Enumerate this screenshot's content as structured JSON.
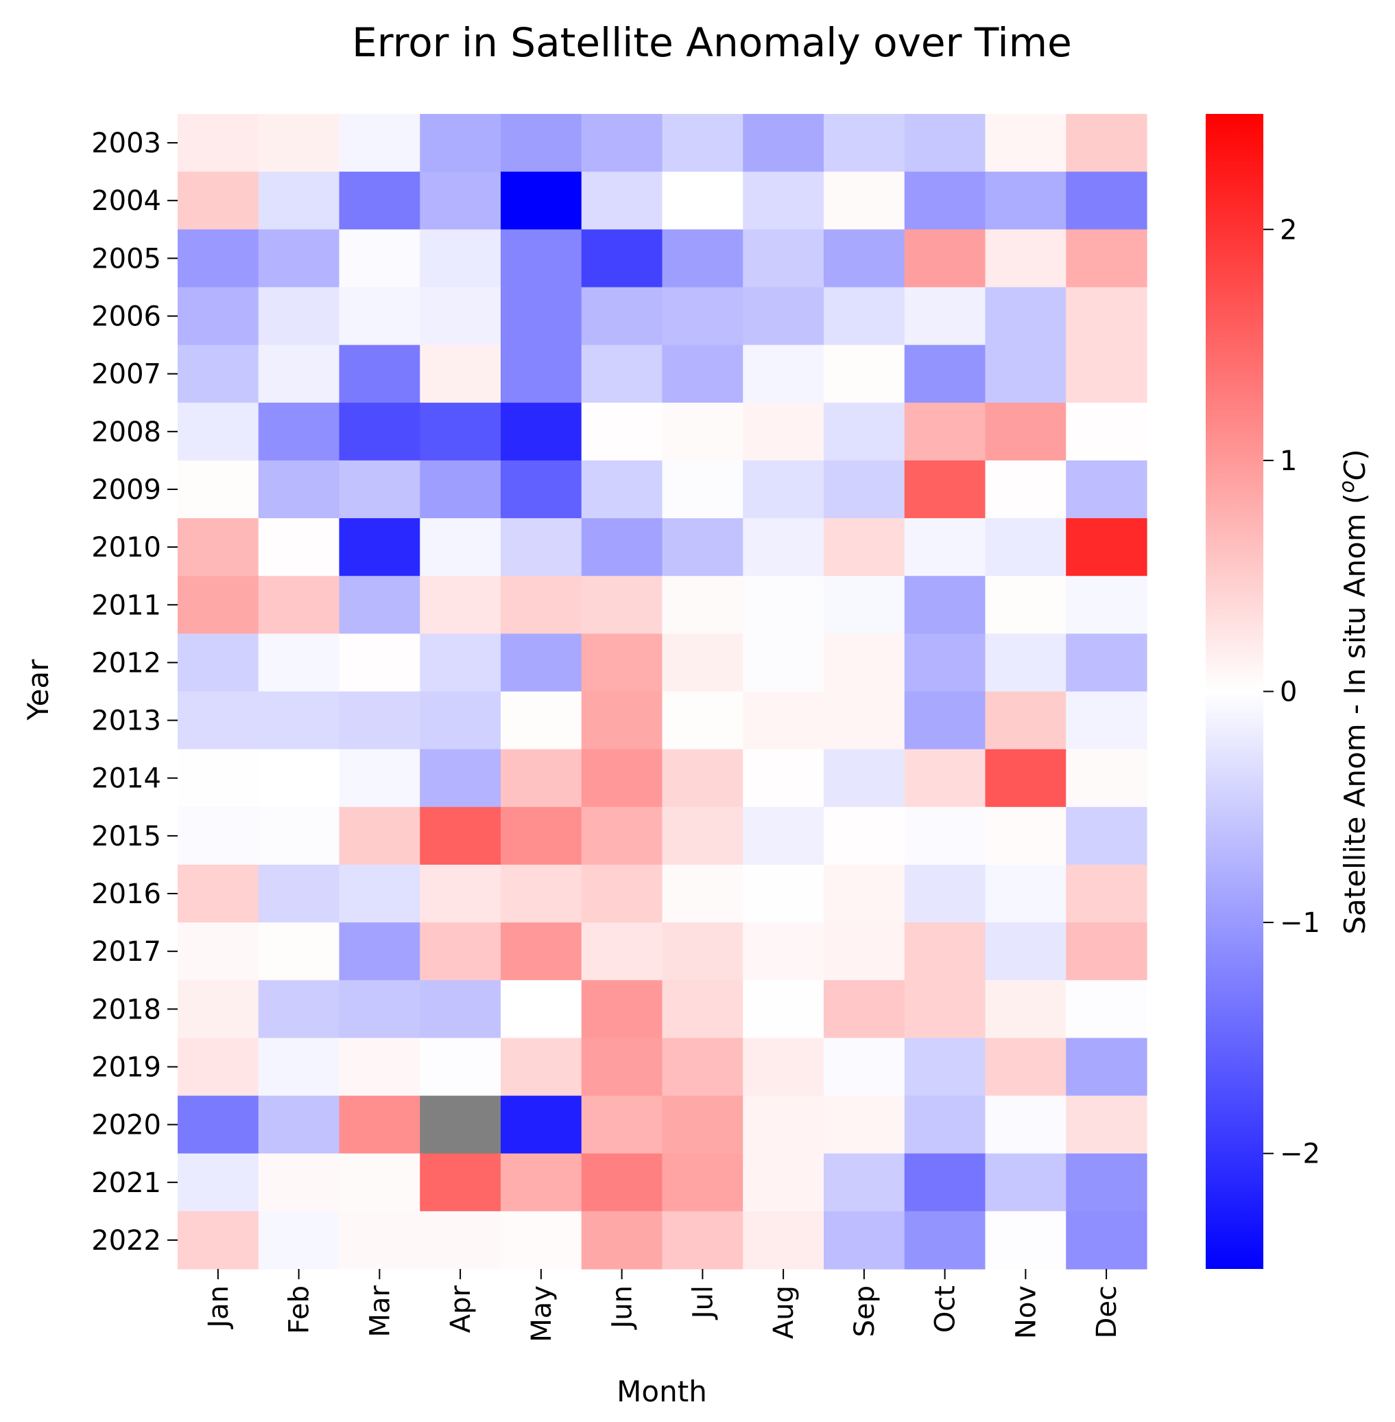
{
  "chart_data": {
    "type": "heatmap",
    "title": "Error in Satellite Anomaly over Time",
    "xlabel": "Month",
    "ylabel": "Year",
    "colorbar_label": "Satellite Anom - In situ Anom (",
    "colorbar_label_unit": "C",
    "colorbar_label_unit_sup": "o",
    "colorbar_label_close": ")",
    "colormap": "bwr",
    "missing_color": "#808080",
    "vmin": -2.5,
    "vmax": 2.5,
    "colorbar_ticks": [
      2,
      1,
      0,
      -1,
      -2
    ],
    "colorbar_tick_labels": [
      "2",
      "1",
      "0",
      "−1",
      "−2"
    ],
    "x_categories": [
      "Jan",
      "Feb",
      "Mar",
      "Apr",
      "May",
      "Jun",
      "Jul",
      "Aug",
      "Sep",
      "Oct",
      "Nov",
      "Dec"
    ],
    "y_categories": [
      "2003",
      "2004",
      "2005",
      "2006",
      "2007",
      "2008",
      "2009",
      "2010",
      "2011",
      "2012",
      "2013",
      "2014",
      "2015",
      "2016",
      "2017",
      "2018",
      "2019",
      "2020",
      "2021",
      "2022"
    ],
    "values": [
      [
        0.2,
        0.15,
        -0.1,
        -0.8,
        -0.95,
        -0.75,
        -0.45,
        -0.85,
        -0.45,
        -0.55,
        0.1,
        0.5
      ],
      [
        0.5,
        -0.3,
        -1.3,
        -0.75,
        -2.5,
        -0.35,
        0.0,
        -0.35,
        0.05,
        -1.0,
        -0.8,
        -1.25
      ],
      [
        -1.0,
        -0.75,
        -0.05,
        -0.2,
        -1.2,
        -1.85,
        -0.95,
        -0.5,
        -0.85,
        0.95,
        0.2,
        0.8
      ],
      [
        -0.75,
        -0.25,
        -0.1,
        -0.15,
        -1.2,
        -0.7,
        -0.65,
        -0.6,
        -0.3,
        -0.15,
        -0.55,
        0.35
      ],
      [
        -0.55,
        -0.15,
        -1.3,
        0.15,
        -1.2,
        -0.45,
        -0.75,
        -0.1,
        0.03,
        -1.05,
        -0.55,
        0.35
      ],
      [
        -0.2,
        -1.1,
        -1.75,
        -1.65,
        -2.1,
        0.02,
        0.05,
        0.12,
        -0.3,
        0.75,
        0.95,
        0.02
      ],
      [
        0.03,
        -0.7,
        -0.6,
        -0.95,
        -1.55,
        -0.45,
        -0.03,
        -0.3,
        -0.45,
        1.55,
        0.02,
        -0.65
      ],
      [
        0.7,
        0.02,
        -2.1,
        -0.1,
        -0.4,
        -0.9,
        -0.6,
        -0.15,
        0.35,
        -0.1,
        -0.2,
        2.1
      ],
      [
        0.85,
        0.55,
        -0.7,
        0.25,
        0.45,
        0.4,
        0.05,
        -0.03,
        -0.07,
        -0.85,
        0.03,
        -0.08
      ],
      [
        -0.45,
        -0.08,
        0.02,
        -0.35,
        -0.85,
        0.8,
        0.15,
        -0.03,
        0.1,
        -0.75,
        -0.2,
        -0.65
      ],
      [
        -0.35,
        -0.35,
        -0.4,
        -0.45,
        0.03,
        0.85,
        0.03,
        0.1,
        0.1,
        -0.85,
        0.5,
        -0.12
      ],
      [
        0.01,
        0.0,
        -0.08,
        -0.75,
        0.6,
        1.0,
        0.4,
        0.02,
        -0.25,
        0.35,
        1.65,
        0.05
      ],
      [
        -0.04,
        -0.03,
        0.5,
        1.55,
        1.1,
        0.75,
        0.3,
        -0.15,
        0.02,
        -0.04,
        0.04,
        -0.45
      ],
      [
        0.45,
        -0.4,
        -0.3,
        0.25,
        0.35,
        0.45,
        0.05,
        0.01,
        0.1,
        -0.25,
        -0.08,
        0.45
      ],
      [
        0.07,
        0.03,
        -0.9,
        0.55,
        1.0,
        0.25,
        0.3,
        0.08,
        0.12,
        0.45,
        -0.25,
        0.65
      ],
      [
        0.15,
        -0.5,
        -0.55,
        -0.6,
        0.0,
        1.0,
        0.35,
        0.01,
        0.55,
        0.45,
        0.15,
        -0.02
      ],
      [
        0.25,
        -0.1,
        0.08,
        -0.02,
        0.4,
        0.95,
        0.65,
        0.18,
        -0.04,
        -0.45,
        0.45,
        -0.85
      ],
      [
        -1.3,
        -0.6,
        1.1,
        null,
        -2.2,
        0.75,
        0.85,
        0.12,
        0.1,
        -0.55,
        -0.04,
        0.3
      ],
      [
        -0.2,
        0.07,
        0.05,
        1.5,
        0.8,
        1.25,
        0.9,
        0.12,
        -0.5,
        -1.35,
        -0.55,
        -1.05
      ],
      [
        0.45,
        -0.08,
        0.07,
        0.07,
        0.04,
        0.85,
        0.55,
        0.18,
        -0.65,
        -1.05,
        -0.02,
        -1.1
      ]
    ]
  }
}
